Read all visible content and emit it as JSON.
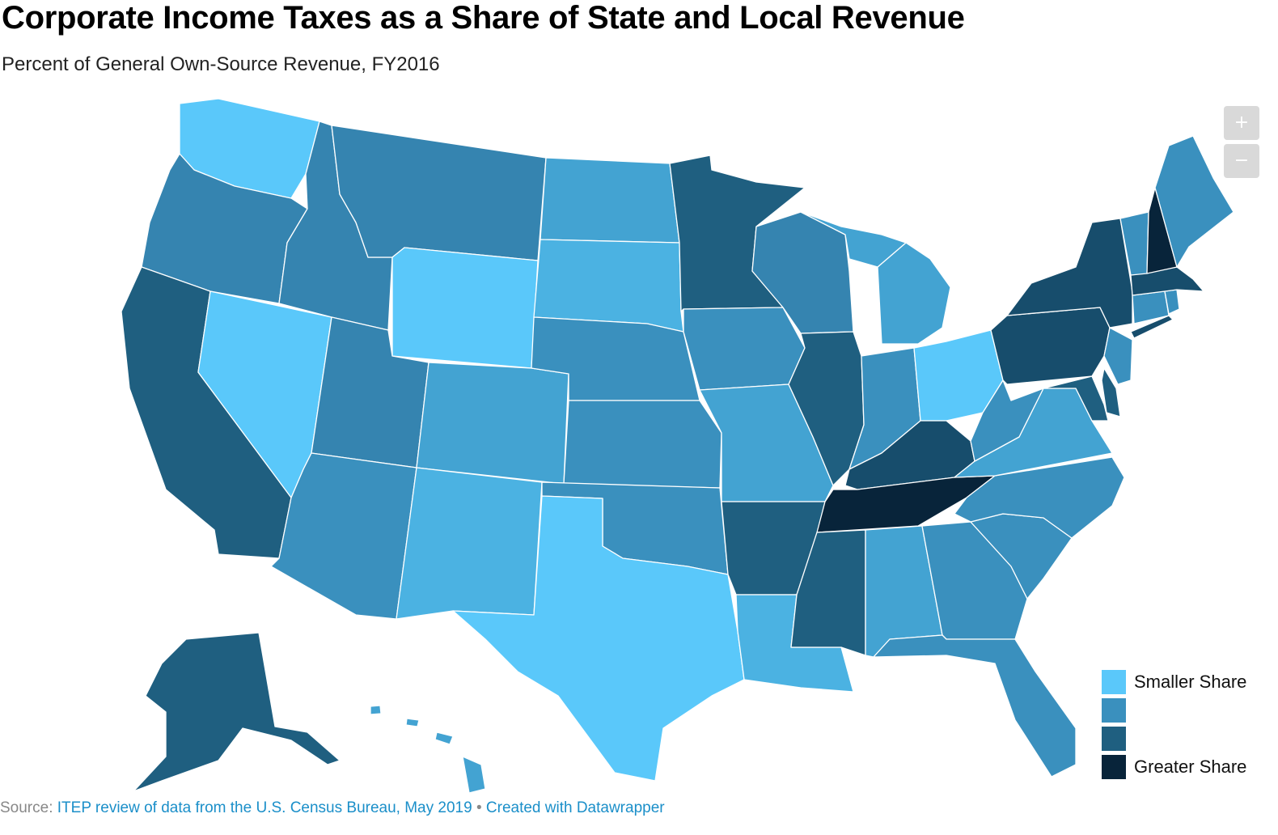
{
  "title": "Corporate Income Taxes as a Share of State and Local Revenue",
  "subtitle": "Percent of General Own-Source Revenue, FY2016",
  "zoom": {
    "in_label": "+",
    "out_label": "−"
  },
  "colors": {
    "tier1": "#5ac8fa",
    "tier2": "#3a90be",
    "tier3": "#1f5f80",
    "tier4": "#08243a",
    "tier1b": "#4bb2e2",
    "tier2b": "#3584b0",
    "tier3b": "#174d6c"
  },
  "legend": [
    {
      "label": "Smaller Share",
      "color": "#5ac8fa"
    },
    {
      "label": "",
      "color": "#3a90be"
    },
    {
      "label": "",
      "color": "#1f5f80"
    },
    {
      "label": "Greater Share",
      "color": "#08243a"
    }
  ],
  "map_data": {
    "states": [
      {
        "name": "Washington",
        "tier": 1
      },
      {
        "name": "Oregon",
        "tier": 2
      },
      {
        "name": "California",
        "tier": 3
      },
      {
        "name": "Nevada",
        "tier": 1
      },
      {
        "name": "Idaho",
        "tier": 2
      },
      {
        "name": "Montana",
        "tier": 2
      },
      {
        "name": "Wyoming",
        "tier": 1
      },
      {
        "name": "Utah",
        "tier": 2
      },
      {
        "name": "Arizona",
        "tier": 2
      },
      {
        "name": "Colorado",
        "tier": 2
      },
      {
        "name": "New Mexico",
        "tier": 1
      },
      {
        "name": "North Dakota",
        "tier": 2
      },
      {
        "name": "South Dakota",
        "tier": 1
      },
      {
        "name": "Nebraska",
        "tier": 2
      },
      {
        "name": "Kansas",
        "tier": 2
      },
      {
        "name": "Oklahoma",
        "tier": 2
      },
      {
        "name": "Texas",
        "tier": 1
      },
      {
        "name": "Minnesota",
        "tier": 3
      },
      {
        "name": "Iowa",
        "tier": 2
      },
      {
        "name": "Missouri",
        "tier": 2
      },
      {
        "name": "Arkansas",
        "tier": 3
      },
      {
        "name": "Louisiana",
        "tier": 1
      },
      {
        "name": "Wisconsin",
        "tier": 2
      },
      {
        "name": "Illinois",
        "tier": 3
      },
      {
        "name": "Michigan",
        "tier": 2
      },
      {
        "name": "Indiana",
        "tier": 2
      },
      {
        "name": "Ohio",
        "tier": 1
      },
      {
        "name": "Kentucky",
        "tier": 3
      },
      {
        "name": "Tennessee",
        "tier": 4
      },
      {
        "name": "Mississippi",
        "tier": 3
      },
      {
        "name": "Alabama",
        "tier": 2
      },
      {
        "name": "Georgia",
        "tier": 2
      },
      {
        "name": "Florida",
        "tier": 2
      },
      {
        "name": "South Carolina",
        "tier": 2
      },
      {
        "name": "North Carolina",
        "tier": 2
      },
      {
        "name": "Virginia",
        "tier": 2
      },
      {
        "name": "West Virginia",
        "tier": 2
      },
      {
        "name": "Maryland",
        "tier": 3
      },
      {
        "name": "Delaware",
        "tier": 3
      },
      {
        "name": "Pennsylvania",
        "tier": 3
      },
      {
        "name": "New Jersey",
        "tier": 2
      },
      {
        "name": "New York",
        "tier": 3
      },
      {
        "name": "Connecticut",
        "tier": 2
      },
      {
        "name": "Rhode Island",
        "tier": 2
      },
      {
        "name": "Massachusetts",
        "tier": 3
      },
      {
        "name": "Vermont",
        "tier": 2
      },
      {
        "name": "New Hampshire",
        "tier": 4
      },
      {
        "name": "Maine",
        "tier": 2
      },
      {
        "name": "Alaska",
        "tier": 3
      },
      {
        "name": "Hawaii",
        "tier": 2
      }
    ]
  },
  "source": {
    "prefix": "Source: ",
    "text": "ITEP review of data from the U.S. Census Bureau, May 2019",
    "separator": " • ",
    "credit": "Created with Datawrapper"
  }
}
